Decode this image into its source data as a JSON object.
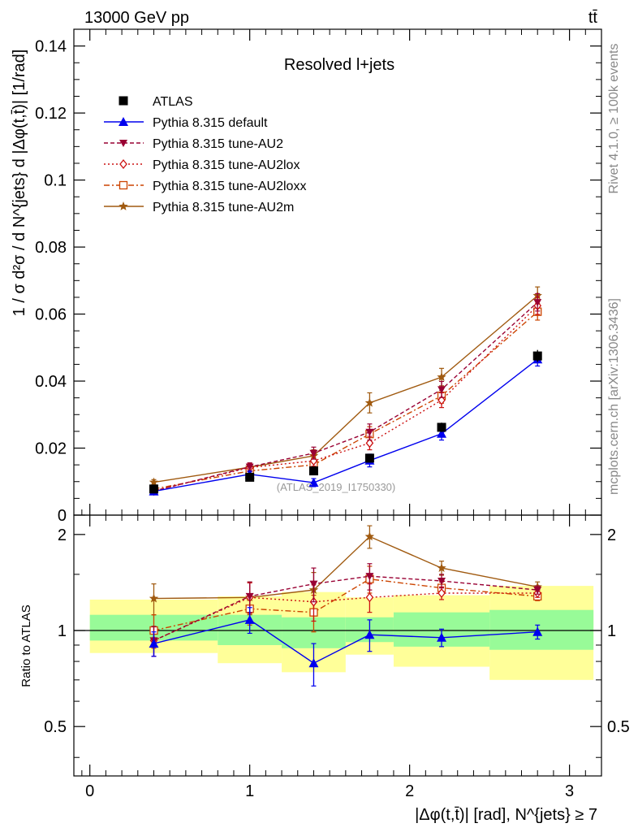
{
  "header": {
    "energy_label": "13000 GeV pp",
    "process_label": "tt̄",
    "rivet_label": "Rivet 4.1.0, ≥ 100k events",
    "mcplots_label": "mcplots.cern.ch [arXiv:1306.3436]",
    "analysis_id": "(ATLAS_2019_I1750330)",
    "plot_title": "Resolved l+jets"
  },
  "colors": {
    "atlas": "#000000",
    "default": "#0000ee",
    "au2": "#990033",
    "au2lox": "#cc1111",
    "au2loxx": "#cc4400",
    "au2m": "#a05a10",
    "band_inner": "#98fb98",
    "band_outer": "#ffff99"
  },
  "chart_data": [
    {
      "type": "line",
      "title": "Resolved l+jets",
      "xlabel": "|Δφ(t,t̄)| [rad], N^{jets} ≥ 7",
      "ylabel": "1 / σ d²σ / d N^{jets} d |Δφ(t,t̄)| [1/rad]",
      "xlim": [
        -0.1,
        3.2
      ],
      "ylim": [
        0,
        0.145
      ],
      "x_ticks": [
        0,
        1,
        2,
        3
      ],
      "x_tick_labels": [
        "0",
        "1",
        "2",
        "3"
      ],
      "y_ticks": [
        0,
        0.02,
        0.04,
        0.06,
        0.08,
        0.1,
        0.12,
        0.14
      ],
      "y_tick_labels": [
        "0",
        "0.02",
        "0.04",
        "0.06",
        "0.08",
        "0.1",
        "0.12",
        "0.14"
      ],
      "x": [
        0.4,
        1.0,
        1.4,
        1.75,
        2.2,
        2.8
      ],
      "legend": [
        "ATLAS",
        "Pythia 8.315 default",
        "Pythia 8.315 tune-AU2",
        "Pythia 8.315 tune-AU2lox",
        "Pythia 8.315 tune-AU2loxx",
        "Pythia 8.315 tune-AU2m"
      ],
      "series": [
        {
          "name": "ATLAS",
          "key": "atlas",
          "values": [
            0.0078,
            0.0113,
            0.0132,
            0.017,
            0.0262,
            0.0475
          ],
          "errors": [
            0.0008,
            0.0008,
            0.001,
            0.0012,
            0.0014,
            0.0018
          ]
        },
        {
          "name": "Pythia 8.315 default",
          "key": "default",
          "values": [
            0.0071,
            0.0122,
            0.0097,
            0.0163,
            0.0243,
            0.0465
          ],
          "errors": [
            0.0006,
            0.0009,
            0.0012,
            0.0019,
            0.0019,
            0.002
          ]
        },
        {
          "name": "Pythia 8.315 tune-AU2",
          "key": "au2",
          "values": [
            0.0072,
            0.0144,
            0.0185,
            0.0248,
            0.0375,
            0.0635
          ],
          "errors": [
            0.0006,
            0.0012,
            0.0018,
            0.0024,
            0.0024,
            0.0026
          ]
        },
        {
          "name": "Pythia 8.315 tune-AU2lox",
          "key": "au2lox",
          "values": [
            0.0072,
            0.0142,
            0.0162,
            0.0215,
            0.0343,
            0.0625
          ],
          "errors": [
            0.0006,
            0.0012,
            0.0016,
            0.002,
            0.0022,
            0.0026
          ]
        },
        {
          "name": "Pythia 8.315 tune-AU2loxx",
          "key": "au2loxx",
          "values": [
            0.0078,
            0.0132,
            0.015,
            0.0242,
            0.0356,
            0.0607
          ],
          "errors": [
            0.0007,
            0.0011,
            0.0015,
            0.0022,
            0.0022,
            0.0025
          ]
        },
        {
          "name": "Pythia 8.315 tune-AU2m",
          "key": "au2m",
          "values": [
            0.0098,
            0.0143,
            0.0177,
            0.0335,
            0.0412,
            0.0655
          ],
          "errors": [
            0.0008,
            0.0012,
            0.0018,
            0.003,
            0.0026,
            0.0026
          ]
        }
      ]
    },
    {
      "type": "line",
      "title": "",
      "ylabel": "Ratio to ATLAS",
      "xlabel": "|Δφ(t,t̄)| [rad], N^{jets} ≥ 7",
      "ylim": [
        0.35,
        2.3
      ],
      "y_scale": "log",
      "y_ticks": [
        0.5,
        1,
        2
      ],
      "y_tick_labels": [
        "0.5",
        "1",
        "2"
      ],
      "x": [
        0.4,
        1.0,
        1.4,
        1.75,
        2.2,
        2.8
      ],
      "bins": [
        [
          0,
          0.8
        ],
        [
          0.8,
          1.2
        ],
        [
          1.2,
          1.6
        ],
        [
          1.6,
          1.9
        ],
        [
          1.9,
          2.5
        ],
        [
          2.5,
          3.15
        ]
      ],
      "band_inner": [
        [
          0.93,
          1.12
        ],
        [
          0.9,
          1.12
        ],
        [
          0.88,
          1.1
        ],
        [
          0.92,
          1.1
        ],
        [
          0.89,
          1.14
        ],
        [
          0.87,
          1.16
        ]
      ],
      "band_outer": [
        [
          0.85,
          1.25
        ],
        [
          0.79,
          1.28
        ],
        [
          0.74,
          1.32
        ],
        [
          0.84,
          1.27
        ],
        [
          0.77,
          1.29
        ],
        [
          0.7,
          1.38
        ]
      ],
      "series": [
        {
          "name": "Pythia 8.315 default",
          "key": "default",
          "values": [
            0.91,
            1.08,
            0.79,
            0.97,
            0.95,
            0.99
          ],
          "errors": [
            0.08,
            0.1,
            0.12,
            0.11,
            0.06,
            0.05
          ]
        },
        {
          "name": "Pythia 8.315 tune-AU2",
          "key": "au2",
          "values": [
            0.93,
            1.28,
            1.4,
            1.48,
            1.43,
            1.34
          ],
          "errors": [
            0.1,
            0.14,
            0.17,
            0.14,
            0.07,
            0.04
          ]
        },
        {
          "name": "Pythia 8.315 tune-AU2lox",
          "key": "au2lox",
          "values": [
            0.93,
            1.27,
            1.23,
            1.27,
            1.31,
            1.31
          ],
          "errors": [
            0.1,
            0.14,
            0.16,
            0.13,
            0.06,
            0.04
          ]
        },
        {
          "name": "Pythia 8.315 tune-AU2loxx",
          "key": "au2loxx",
          "values": [
            1.0,
            1.17,
            1.14,
            1.45,
            1.36,
            1.28
          ],
          "errors": [
            0.12,
            0.13,
            0.15,
            0.14,
            0.06,
            0.04
          ]
        },
        {
          "name": "Pythia 8.315 tune-AU2m",
          "key": "au2m",
          "values": [
            1.26,
            1.27,
            1.34,
            1.97,
            1.57,
            1.37
          ],
          "errors": [
            0.14,
            0.15,
            0.18,
            0.16,
            0.08,
            0.05
          ]
        }
      ]
    }
  ]
}
